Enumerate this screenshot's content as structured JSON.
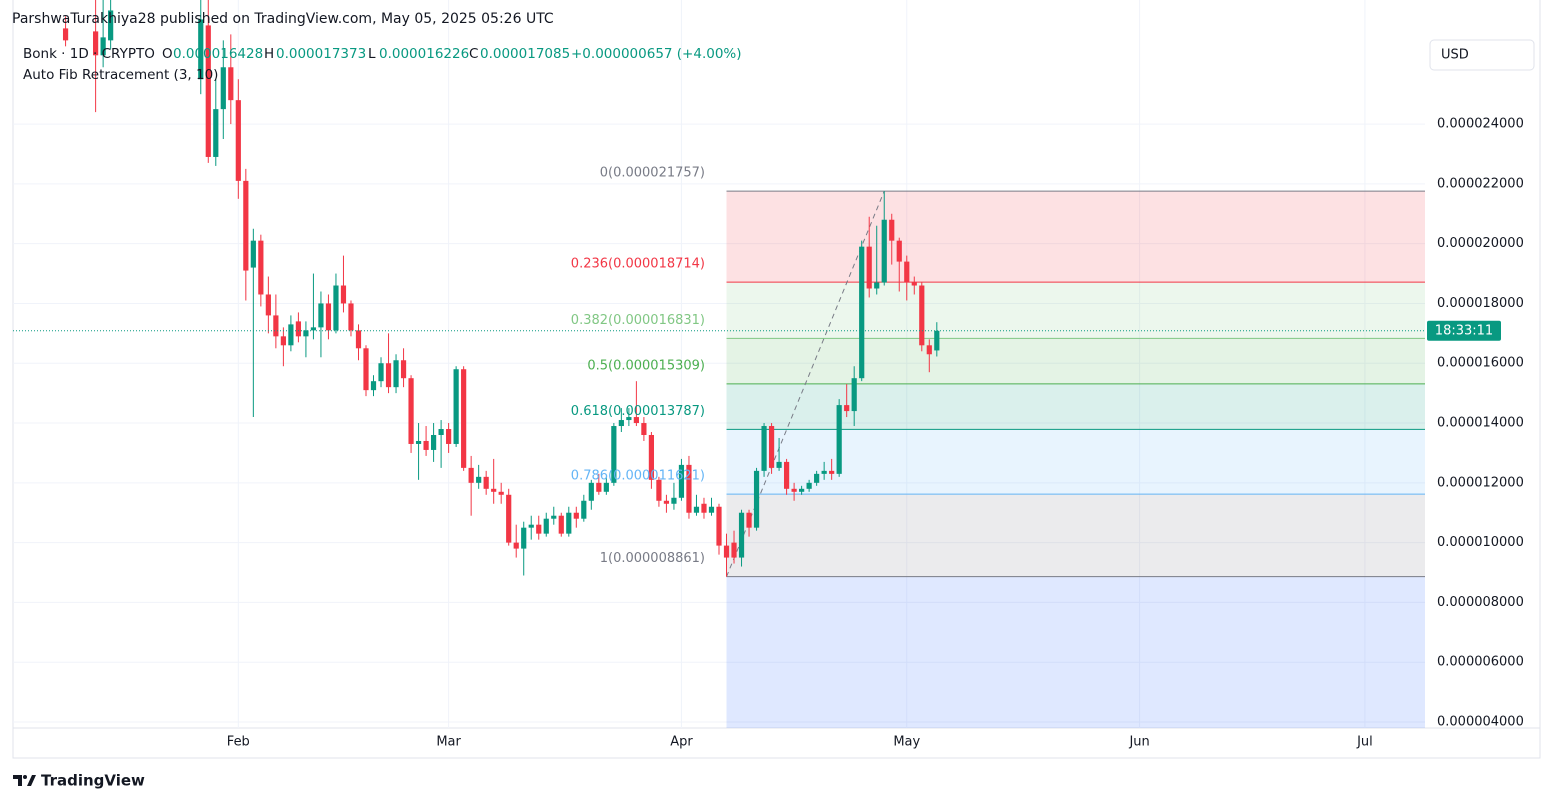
{
  "chart_data": {
    "type": "candlestick",
    "author_line": "ParshwaTurakhiya28 published on TradingView.com, May 05, 2025 05:26 UTC",
    "symbol": "Bonk · 1D · CRYPTO",
    "ohlc_labels": [
      "O",
      "H",
      "L",
      "C"
    ],
    "change": "+0.000000657 (+4.00%)",
    "indicator": "Auto Fib Retracement (3, 10)",
    "currency": "USD",
    "countdown": "18:33:11",
    "brand": "TradingView",
    "up_color": "#089981",
    "down_color": "#f23645",
    "ylim": [
      4e-06,
      2.815e-05
    ],
    "yticks": [
      {
        "value": 4e-06,
        "label": "0.000004000"
      },
      {
        "value": 6e-06,
        "label": "0.000006000"
      },
      {
        "value": 8e-06,
        "label": "0.000008000"
      },
      {
        "value": 1e-05,
        "label": "0.000010000"
      },
      {
        "value": 1.2e-05,
        "label": "0.000012000"
      },
      {
        "value": 1.4e-05,
        "label": "0.000014000"
      },
      {
        "value": 1.6e-05,
        "label": "0.000016000"
      },
      {
        "value": 1.8e-05,
        "label": "0.000018000"
      },
      {
        "value": 2e-05,
        "label": "0.000020000"
      },
      {
        "value": 2.2e-05,
        "label": "0.000022000"
      },
      {
        "value": 2.4e-05,
        "label": "0.000024000"
      }
    ],
    "grid": true,
    "fib_levels": [
      {
        "label": "0(0.000021757)",
        "value": 2.1757e-05,
        "color": "#787b86"
      },
      {
        "label": "0.236(0.000018714)",
        "value": 1.8714e-05,
        "color": "#f23645"
      },
      {
        "label": "0.382(0.000016831)",
        "value": 1.6831e-05,
        "color": "#81c784"
      },
      {
        "label": "0.5(0.000015309)",
        "value": 1.5309e-05,
        "color": "#4caf50"
      },
      {
        "label": "0.618(0.000013787)",
        "value": 1.3787e-05,
        "color": "#089981"
      },
      {
        "label": "0.786(0.000011621)",
        "value": 1.1621e-05,
        "color": "#64b5f6"
      },
      {
        "label": "1(0.000008861)",
        "value": 8.861e-06,
        "color": "#787b86"
      }
    ],
    "categories": [
      null,
      null,
      null,
      null,
      null,
      null,
      null,
      null,
      null,
      null,
      null,
      null,
      null,
      null,
      null,
      null,
      null,
      null,
      null,
      null,
      null,
      null,
      null,
      null,
      null,
      null,
      null,
      null,
      null,
      null,
      "Feb",
      null,
      null,
      null,
      null,
      null,
      null,
      null,
      null,
      null,
      null,
      null,
      null,
      null,
      null,
      null,
      null,
      null,
      null,
      null,
      null,
      null,
      null,
      null,
      null,
      null,
      null,
      null,
      "Mar",
      null,
      null,
      null,
      null,
      null,
      null,
      null,
      null,
      null,
      null,
      null,
      null,
      null,
      null,
      null,
      null,
      null,
      null,
      null,
      null,
      null,
      null,
      null,
      null,
      null,
      null,
      null,
      null,
      null,
      null,
      "Apr",
      null,
      null,
      null,
      null,
      null,
      null,
      null,
      null,
      null,
      null,
      null,
      null,
      null,
      null,
      null,
      null,
      null,
      null,
      null,
      null,
      null,
      null,
      null,
      null,
      null,
      null,
      null,
      null,
      null,
      "May",
      null,
      null,
      null,
      null,
      null,
      null,
      null,
      null,
      null,
      null,
      null,
      null,
      null,
      null,
      null,
      null,
      null,
      null,
      null,
      null,
      null,
      null,
      null,
      null,
      null,
      null,
      null,
      null,
      null,
      null,
      "Jun",
      null,
      null,
      null,
      null,
      null,
      null,
      null,
      null,
      null,
      null,
      null,
      null,
      null,
      null,
      null,
      null,
      null,
      null,
      null,
      null,
      null,
      null,
      null,
      null,
      null,
      null,
      null,
      null,
      null,
      "Jul",
      null,
      null,
      null,
      null,
      null,
      null,
      null
    ],
    "open": [
      null,
      null,
      null,
      null,
      null,
      null,
      null,
      2.72e-05,
      null,
      null,
      null,
      2.71e-05,
      2.63e-05,
      2.68e-05,
      null,
      null,
      null,
      null,
      null,
      null,
      null,
      null,
      null,
      null,
      null,
      2.55e-05,
      2.73e-05,
      2.29e-05,
      2.45e-05,
      2.59e-05,
      2.48e-05,
      2.21e-05,
      1.92e-05,
      2.01e-05,
      1.83e-05,
      1.76e-05,
      1.69e-05,
      1.66e-05,
      1.74e-05,
      1.69e-05,
      1.71e-05,
      1.72e-05,
      1.8e-05,
      1.71e-05,
      1.86e-05,
      1.8e-05,
      1.71e-05,
      1.65e-05,
      1.51e-05,
      1.54e-05,
      1.6e-05,
      1.52e-05,
      1.61e-05,
      1.55e-05,
      1.33e-05,
      1.34e-05,
      1.31e-05,
      1.36e-05,
      1.38e-05,
      1.33e-05,
      1.58e-05,
      1.25e-05,
      1.2e-05,
      1.22e-05,
      1.18e-05,
      1.17e-05,
      1.16e-05,
      1e-05,
      9.8e-06,
      1.05e-05,
      1.06e-05,
      1.03e-05,
      1.08e-05,
      1.09e-05,
      1.03e-05,
      1.1e-05,
      1.08e-05,
      1.14e-05,
      1.2e-05,
      1.17e-05,
      1.2e-05,
      1.39e-05,
      1.41e-05,
      1.42e-05,
      1.4e-05,
      1.36e-05,
      1.21e-05,
      1.14e-05,
      1.13e-05,
      1.15e-05,
      1.26e-05,
      1.1e-05,
      1.13e-05,
      1.1e-05,
      1.12e-05,
      9.9e-06,
      1e-05,
      9.5e-06,
      1.1e-05,
      1.05e-05,
      1.24e-05,
      1.39e-05,
      1.25e-05,
      1.27e-05,
      1.18e-05,
      1.17e-05,
      1.18e-05,
      1.2e-05,
      1.23e-05,
      1.24e-05,
      1.23e-05,
      1.46e-05,
      1.44e-05,
      1.55e-05,
      1.99e-05,
      1.85e-05,
      1.87e-05,
      2.08e-05,
      2.01e-05,
      1.94e-05,
      1.87e-05,
      1.86e-05,
      1.66e-05,
      1.6428e-05,
      null,
      null,
      null,
      null,
      null,
      null,
      null,
      null,
      null,
      null,
      null,
      null,
      null,
      null,
      null,
      null,
      null,
      null,
      null,
      null,
      null,
      null,
      null,
      null,
      null,
      null,
      null,
      null,
      null,
      null,
      null,
      null,
      null,
      null,
      null,
      null,
      null,
      null,
      null,
      null,
      null,
      null,
      null,
      null,
      null,
      null,
      null,
      null,
      null,
      null,
      null,
      null,
      null,
      null,
      null,
      null,
      null,
      null,
      null,
      null,
      null,
      null,
      null,
      null
    ],
    "high": [
      null,
      null,
      null,
      null,
      null,
      null,
      null,
      2.76e-05,
      null,
      null,
      null,
      2.85e-05,
      2.85e-05,
      2.85e-05,
      null,
      null,
      null,
      null,
      null,
      null,
      null,
      null,
      null,
      null,
      null,
      2.85e-05,
      2.85e-05,
      2.55e-05,
      2.68e-05,
      2.7e-05,
      2.55e-05,
      2.25e-05,
      2.05e-05,
      2.03e-05,
      1.89e-05,
      1.83e-05,
      1.72e-05,
      1.76e-05,
      1.77e-05,
      1.74e-05,
      1.9e-05,
      1.84e-05,
      1.83e-05,
      1.9e-05,
      1.96e-05,
      1.81e-05,
      1.73e-05,
      1.66e-05,
      1.56e-05,
      1.62e-05,
      1.7e-05,
      1.63e-05,
      1.65e-05,
      1.56e-05,
      1.4e-05,
      1.39e-05,
      1.4e-05,
      1.41e-05,
      1.4e-05,
      1.59e-05,
      1.59e-05,
      1.29e-05,
      1.26e-05,
      1.24e-05,
      1.28e-05,
      1.2e-05,
      1.18e-05,
      1.06e-05,
      1.07e-05,
      1.09e-05,
      1.09e-05,
      1.1e-05,
      1.12e-05,
      1.1e-05,
      1.12e-05,
      1.12e-05,
      1.16e-05,
      1.21e-05,
      1.23e-05,
      1.22e-05,
      1.4e-05,
      1.45e-05,
      1.45e-05,
      1.54e-05,
      1.42e-05,
      1.37e-05,
      1.22e-05,
      1.16e-05,
      1.2e-05,
      1.28e-05,
      1.29e-05,
      1.16e-05,
      1.15e-05,
      1.15e-05,
      1.13e-05,
      1.03e-05,
      1.04e-05,
      1.11e-05,
      1.11e-05,
      1.25e-05,
      1.4e-05,
      1.4e-05,
      1.35e-05,
      1.28e-05,
      1.2e-05,
      1.19e-05,
      1.21e-05,
      1.24e-05,
      1.27e-05,
      1.28e-05,
      1.48e-05,
      1.53e-05,
      1.59e-05,
      2.01e-05,
      2.09e-05,
      2.06e-05,
      2.1757e-05,
      2.1e-05,
      2.02e-05,
      1.96e-05,
      1.89e-05,
      1.87e-05,
      1.68e-05,
      1.7373e-05,
      null,
      null,
      null,
      null,
      null,
      null,
      null,
      null,
      null,
      null,
      null,
      null,
      null,
      null,
      null,
      null,
      null,
      null,
      null,
      null,
      null,
      null,
      null,
      null,
      null,
      null,
      null,
      null,
      null,
      null,
      null,
      null,
      null,
      null,
      null,
      null,
      null,
      null,
      null,
      null,
      null,
      null,
      null,
      null,
      null,
      null,
      null,
      null,
      null,
      null,
      null,
      null,
      null,
      null,
      null,
      null,
      null,
      null,
      null,
      null,
      null,
      null,
      null,
      null
    ],
    "low": [
      null,
      null,
      null,
      null,
      null,
      null,
      null,
      2.66e-05,
      null,
      null,
      null,
      2.44e-05,
      2.59e-05,
      2.65e-05,
      null,
      null,
      null,
      null,
      null,
      null,
      null,
      null,
      null,
      null,
      null,
      2.5e-05,
      2.27e-05,
      2.26e-05,
      2.35e-05,
      2.4e-05,
      2.15e-05,
      1.81e-05,
      1.42e-05,
      1.79e-05,
      1.7e-05,
      1.65e-05,
      1.59e-05,
      1.64e-05,
      1.67e-05,
      1.62e-05,
      1.68e-05,
      1.62e-05,
      1.68e-05,
      1.7e-05,
      1.77e-05,
      1.69e-05,
      1.61e-05,
      1.49e-05,
      1.49e-05,
      1.52e-05,
      1.5e-05,
      1.5e-05,
      1.52e-05,
      1.3e-05,
      1.21e-05,
      1.29e-05,
      1.27e-05,
      1.25e-05,
      1.3e-05,
      1.32e-05,
      1.24e-05,
      1.09e-05,
      1.18e-05,
      1.16e-05,
      1.13e-05,
      1.13e-05,
      9.9e-06,
      9.5e-06,
      8.9e-06,
      1.01e-05,
      1.01e-05,
      1.02e-05,
      1.06e-05,
      1.02e-05,
      1.02e-05,
      1.05e-05,
      1.07e-05,
      1.11e-05,
      1.16e-05,
      1.16e-05,
      1.19e-05,
      1.37e-05,
      1.39e-05,
      1.39e-05,
      1.34e-05,
      1.18e-05,
      1.12e-05,
      1.1e-05,
      1.11e-05,
      1.14e-05,
      1.08e-05,
      1.09e-05,
      1.08e-05,
      1.09e-05,
      9.6e-06,
      8.861e-06,
      9.3e-06,
      9.2e-06,
      1.02e-05,
      1.04e-05,
      1.22e-05,
      1.23e-05,
      1.24e-05,
      1.16e-05,
      1.14e-05,
      1.16e-05,
      1.17e-05,
      1.19e-05,
      1.21e-05,
      1.21e-05,
      1.22e-05,
      1.42e-05,
      1.39e-05,
      1.54e-05,
      1.82e-05,
      1.83e-05,
      1.86e-05,
      1.93e-05,
      1.84e-05,
      1.81e-05,
      1.83e-05,
      1.64e-05,
      1.57e-05,
      1.6226e-05,
      null,
      null,
      null,
      null,
      null,
      null,
      null,
      null,
      null,
      null,
      null,
      null,
      null,
      null,
      null,
      null,
      null,
      null,
      null,
      null,
      null,
      null,
      null,
      null,
      null,
      null,
      null,
      null,
      null,
      null,
      null,
      null,
      null,
      null,
      null,
      null,
      null,
      null,
      null,
      null,
      null,
      null,
      null,
      null,
      null,
      null,
      null,
      null,
      null,
      null,
      null,
      null,
      null,
      null,
      null,
      null,
      null,
      null,
      null,
      null,
      null,
      null,
      null,
      null
    ],
    "close": [
      null,
      null,
      null,
      null,
      null,
      null,
      null,
      2.68e-05,
      null,
      null,
      null,
      2.63e-05,
      2.69e-05,
      2.78e-05,
      null,
      null,
      null,
      null,
      null,
      null,
      null,
      null,
      null,
      null,
      null,
      2.75e-05,
      2.29e-05,
      2.45e-05,
      2.59e-05,
      2.48e-05,
      2.21e-05,
      1.91e-05,
      2.01e-05,
      1.83e-05,
      1.76e-05,
      1.69e-05,
      1.66e-05,
      1.73e-05,
      1.69e-05,
      1.71e-05,
      1.72e-05,
      1.8e-05,
      1.71e-05,
      1.86e-05,
      1.8e-05,
      1.71e-05,
      1.65e-05,
      1.51e-05,
      1.54e-05,
      1.6e-05,
      1.52e-05,
      1.61e-05,
      1.55e-05,
      1.33e-05,
      1.34e-05,
      1.31e-05,
      1.36e-05,
      1.38e-05,
      1.33e-05,
      1.58e-05,
      1.25e-05,
      1.2e-05,
      1.22e-05,
      1.18e-05,
      1.17e-05,
      1.16e-05,
      1e-05,
      9.8e-06,
      1.05e-05,
      1.06e-05,
      1.03e-05,
      1.08e-05,
      1.09e-05,
      1.03e-05,
      1.1e-05,
      1.08e-05,
      1.14e-05,
      1.2e-05,
      1.17e-05,
      1.2e-05,
      1.39e-05,
      1.41e-05,
      1.42e-05,
      1.4e-05,
      1.36e-05,
      1.21e-05,
      1.14e-05,
      1.13e-05,
      1.15e-05,
      1.26e-05,
      1.1e-05,
      1.12e-05,
      1.1e-05,
      1.12e-05,
      9.9e-06,
      9.5e-06,
      9.5e-06,
      1.1e-05,
      1.05e-05,
      1.24e-05,
      1.39e-05,
      1.25e-05,
      1.27e-05,
      1.18e-05,
      1.17e-05,
      1.18e-05,
      1.2e-05,
      1.23e-05,
      1.24e-05,
      1.23e-05,
      1.46e-05,
      1.44e-05,
      1.55e-05,
      1.99e-05,
      1.85e-05,
      1.87e-05,
      2.08e-05,
      2.01e-05,
      1.94e-05,
      1.87e-05,
      1.86e-05,
      1.66e-05,
      1.63e-05,
      1.7085e-05,
      null,
      null,
      null,
      null,
      null,
      null,
      null,
      null,
      null,
      null,
      null,
      null,
      null,
      null,
      null,
      null,
      null,
      null,
      null,
      null,
      null,
      null,
      null,
      null,
      null,
      null,
      null,
      null,
      null,
      null,
      null,
      null,
      null,
      null,
      null,
      null,
      null,
      null,
      null,
      null,
      null,
      null,
      null,
      null,
      null,
      null,
      null,
      null,
      null,
      null,
      null,
      null,
      null,
      null,
      null,
      null,
      null,
      null,
      null,
      null,
      null,
      null,
      null,
      null
    ]
  }
}
